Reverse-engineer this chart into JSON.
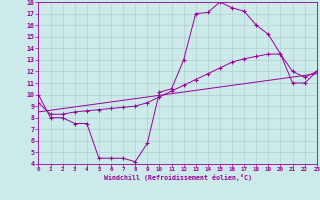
{
  "xlabel": "Windchill (Refroidissement éolien,°C)",
  "xlim": [
    0,
    23
  ],
  "ylim": [
    4,
    18
  ],
  "xticks": [
    0,
    1,
    2,
    3,
    4,
    5,
    6,
    7,
    8,
    9,
    10,
    11,
    12,
    13,
    14,
    15,
    16,
    17,
    18,
    19,
    20,
    21,
    22,
    23
  ],
  "yticks": [
    4,
    5,
    6,
    7,
    8,
    9,
    10,
    11,
    12,
    13,
    14,
    15,
    16,
    17,
    18
  ],
  "bg_color": "#cdeaea",
  "line_color": "#990099",
  "grid_color": "#b0d0d0",
  "line1_x": [
    0,
    1,
    2,
    3,
    4,
    5,
    6,
    7,
    8,
    9,
    10,
    11,
    12,
    13,
    14,
    15,
    16,
    17,
    18,
    19,
    20,
    21,
    22,
    23
  ],
  "line1_y": [
    10,
    8,
    8,
    7.5,
    7.5,
    4.5,
    4.5,
    4.5,
    4.2,
    5.8,
    10.2,
    10.5,
    13.0,
    17.0,
    17.1,
    18.0,
    17.5,
    17.2,
    16.0,
    15.2,
    13.5,
    11.0,
    11.0,
    12.0
  ],
  "line2_x": [
    0,
    1,
    2,
    3,
    4,
    5,
    6,
    7,
    8,
    9,
    10,
    11,
    12,
    13,
    14,
    15,
    16,
    17,
    18,
    19,
    20,
    21,
    22,
    23
  ],
  "line2_y": [
    9.3,
    8.3,
    8.3,
    8.5,
    8.6,
    8.7,
    8.8,
    8.9,
    9.0,
    9.3,
    9.8,
    10.3,
    10.8,
    11.3,
    11.8,
    12.3,
    12.8,
    13.1,
    13.3,
    13.5,
    13.5,
    12.0,
    11.5,
    12.0
  ],
  "line3_x": [
    0,
    23
  ],
  "line3_y": [
    8.5,
    11.8
  ]
}
